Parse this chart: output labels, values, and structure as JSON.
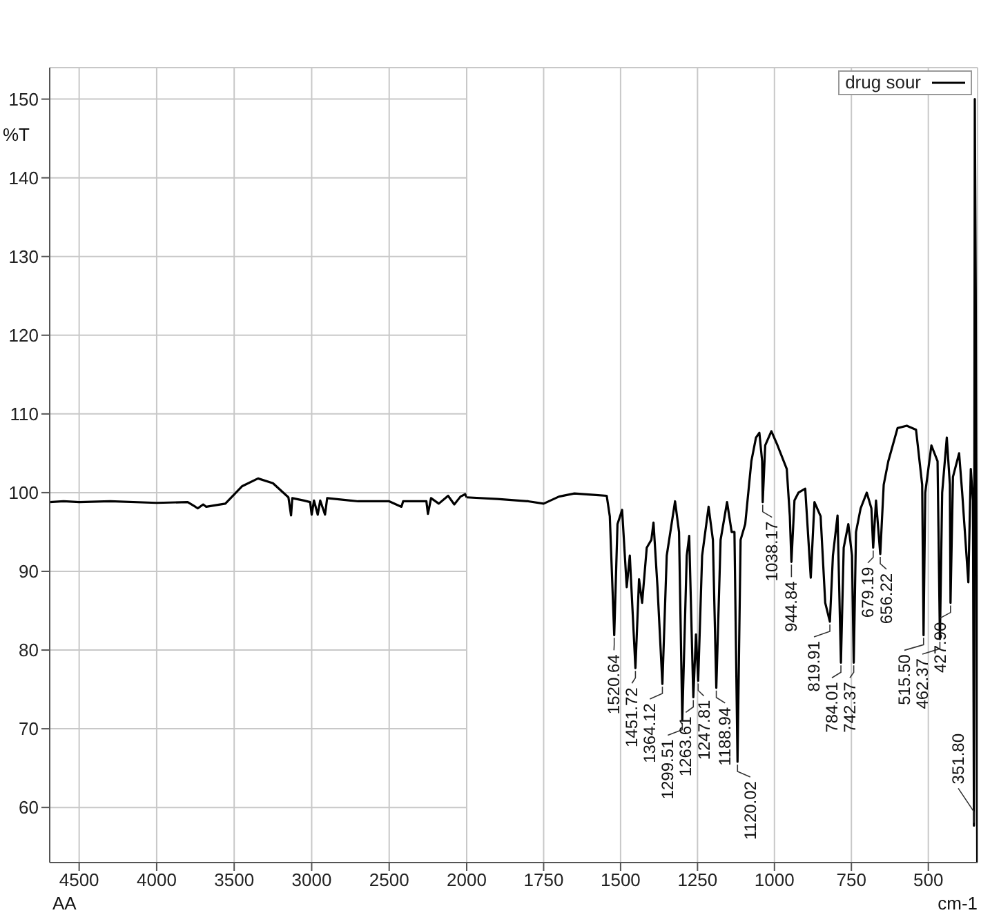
{
  "chart_data": [
    {
      "type": "line",
      "ylabel": "%T",
      "xlim": [
        4690,
        2000
      ],
      "ylim": [
        53,
        154
      ],
      "xticks": [
        4500,
        4000,
        3500,
        3000,
        2500,
        2000
      ],
      "yticks": [
        60,
        70,
        80,
        90,
        100,
        110,
        120,
        130,
        140,
        150
      ],
      "grid": true,
      "legend": false,
      "marker": "none",
      "line_style": "solid",
      "annotations": [
        "AA"
      ],
      "series": [
        {
          "color": "#000000",
          "x": [
            4690,
            4600,
            4500,
            4300,
            4000,
            3800,
            3750,
            3735,
            3700,
            3680,
            3620,
            3557,
            3450,
            3346,
            3250,
            3150,
            3133,
            3125,
            3050,
            3010,
            3000,
            2985,
            2961,
            2945,
            2914,
            2900,
            2700,
            2500,
            2421,
            2410,
            2260,
            2250,
            2230,
            2180,
            2120,
            2080,
            2040,
            2010,
            2000
          ],
          "values": [
            98.8,
            98.9,
            98.8,
            98.9,
            98.7,
            98.8,
            98.2,
            98.0,
            98.5,
            98.2,
            98.4,
            98.6,
            100.8,
            101.8,
            101.2,
            99.4,
            97.1,
            99.3,
            99.0,
            98.8,
            97.2,
            99.0,
            97.2,
            99.0,
            97.2,
            99.3,
            98.9,
            98.9,
            98.2,
            98.9,
            98.9,
            97.3,
            99.3,
            98.6,
            99.6,
            98.5,
            99.5,
            99.8,
            99.4
          ]
        }
      ]
    },
    {
      "type": "line",
      "xlabel": "cm-1",
      "xlim": [
        2000,
        340
      ],
      "ylim": [
        53,
        154
      ],
      "xticks": [
        1750,
        1500,
        1250,
        1000,
        750,
        500
      ],
      "yticks": [
        60,
        70,
        80,
        90,
        100,
        110,
        120,
        130,
        140,
        150
      ],
      "tick_labels": "x",
      "grid": true,
      "legend": "top right",
      "marker": "none",
      "line_style": "solid",
      "series": [
        {
          "name": "drug sour",
          "color": "#000000",
          "x": [
            2000,
            1900,
            1800,
            1750,
            1700,
            1650,
            1580,
            1545,
            1535,
            1520.64,
            1510,
            1495,
            1480,
            1470,
            1451.72,
            1440,
            1430,
            1415,
            1400,
            1393,
            1380,
            1364.12,
            1350,
            1323,
            1310,
            1299.51,
            1285,
            1277,
            1263.61,
            1255,
            1247.81,
            1235,
            1214,
            1200,
            1188.94,
            1175,
            1154,
            1139,
            1130,
            1120.02,
            1110,
            1095,
            1075,
            1060,
            1049,
            1040,
            1038.17,
            1030,
            1010,
            990,
            960,
            950,
            944.84,
            935,
            922,
            900,
            882,
            870,
            850,
            835,
            819.91,
            810,
            795,
            784.01,
            775,
            760,
            748,
            742.37,
            735,
            720,
            700,
            685,
            679.19,
            670,
            656.22,
            645,
            630,
            600,
            570,
            540,
            520,
            515.5,
            510,
            490,
            470,
            462.37,
            455,
            440,
            430,
            427.9,
            420,
            400,
            390,
            370,
            362,
            355,
            351.8,
            349,
            346,
            343,
            341
          ],
          "values": [
            99.4,
            99.2,
            98.9,
            98.6,
            99.5,
            99.9,
            99.7,
            99.6,
            97,
            81.9,
            96,
            97.8,
            88,
            92,
            77.7,
            89,
            86,
            93,
            94,
            96.2,
            88,
            75.7,
            92,
            98.9,
            95,
            71.1,
            92,
            94.5,
            74,
            82,
            76.1,
            92,
            98.2,
            94,
            75.2,
            94,
            98.8,
            95,
            95,
            65.8,
            94,
            96,
            104,
            107,
            107.6,
            104,
            98.8,
            106,
            107.8,
            106,
            103,
            97,
            91.2,
            99,
            100,
            100.5,
            89.2,
            98.8,
            97,
            86,
            83.6,
            92,
            97.1,
            78.4,
            93,
            96,
            92,
            78.4,
            95,
            98,
            100,
            98,
            93,
            99,
            92.2,
            101,
            104,
            108.2,
            108.5,
            108,
            101,
            81.9,
            100,
            106,
            104,
            81.4,
            100,
            107,
            101,
            86,
            102,
            105,
            100,
            88.6,
            103,
            99,
            57.7,
            150,
            126,
            80,
            53
          ]
        }
      ],
      "annotations": [
        {
          "text": "1520.64",
          "x": 1520.64,
          "y": 81.9
        },
        {
          "text": "1451.72",
          "x": 1451.72,
          "y": 77.7
        },
        {
          "text": "1364.12",
          "x": 1364.12,
          "y": 75.7
        },
        {
          "text": "1299.51",
          "x": 1299.51,
          "y": 71.1
        },
        {
          "text": "1263.61",
          "x": 1263.61,
          "y": 74
        },
        {
          "text": "1247.81",
          "x": 1247.81,
          "y": 76.1
        },
        {
          "text": "1188.94",
          "x": 1188.94,
          "y": 75.2
        },
        {
          "text": "1120.02",
          "x": 1120.02,
          "y": 65.8
        },
        {
          "text": "1038.17",
          "x": 1038.17,
          "y": 98.8
        },
        {
          "text": "944.84",
          "x": 944.84,
          "y": 91.2
        },
        {
          "text": "819.91",
          "x": 819.91,
          "y": 83.6
        },
        {
          "text": "784.01",
          "x": 784.01,
          "y": 78.4
        },
        {
          "text": "742.37",
          "x": 742.37,
          "y": 78.4
        },
        {
          "text": "679.19",
          "x": 679.19,
          "y": 93
        },
        {
          "text": "656.22",
          "x": 656.22,
          "y": 92.2
        },
        {
          "text": "515.50",
          "x": 515.5,
          "y": 81.9
        },
        {
          "text": "462.37",
          "x": 462.37,
          "y": 81.4
        },
        {
          "text": "427.90",
          "x": 427.9,
          "y": 86
        },
        {
          "text": "351.80",
          "x": 351.8,
          "y": 57.7
        }
      ]
    }
  ]
}
